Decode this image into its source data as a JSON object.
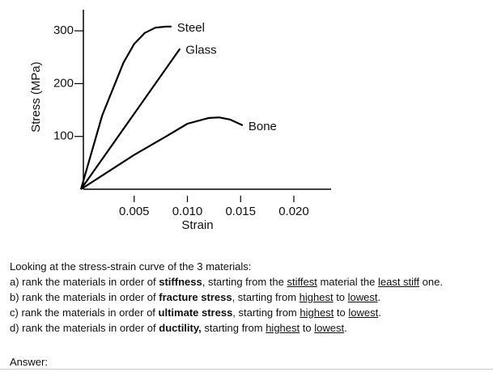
{
  "chart_data": {
    "type": "line",
    "x_label": "Strain",
    "y_label": "Stress (MPa)",
    "xlim": [
      0,
      0.0235
    ],
    "ylim": [
      0,
      340
    ],
    "xticks": [
      0.005,
      {
        "value": 0.01,
        "label": "0.010"
      },
      0.015,
      {
        "value": 0.02,
        "label": "0.020"
      }
    ],
    "yticks": [
      100,
      200,
      300
    ],
    "series": [
      {
        "name": "Steel",
        "color": "#000000",
        "x": [
          0,
          0.002,
          0.004,
          0.005,
          0.006,
          0.007,
          0.008,
          0.0085
        ],
        "values": [
          0,
          140,
          240,
          275,
          296,
          306,
          308,
          308
        ]
      },
      {
        "name": "Glass",
        "color": "#000000",
        "x": [
          0,
          0.0093
        ],
        "values": [
          0,
          266
        ]
      },
      {
        "name": "Bone",
        "color": "#000000",
        "x": [
          0,
          0.005,
          0.008,
          0.01,
          0.012,
          0.013,
          0.014,
          0.0152
        ],
        "values": [
          0,
          65,
          100,
          124,
          135,
          136,
          132,
          121
        ]
      }
    ]
  },
  "question": {
    "intro": "Looking at the stress-strain curve of the 3 materials:",
    "items": [
      [
        "a) rank the materials in order of ",
        "stiffness",
        ", starting from the ",
        "stiffest",
        " material the ",
        "least stiff",
        " one."
      ],
      [
        "b) rank the materials in order of ",
        "fracture stress",
        ", starting from ",
        "highest",
        " to ",
        "lowest",
        "."
      ],
      [
        "c) rank the materials in order of ",
        "ultimate stress",
        ", starting from ",
        "highest",
        " to ",
        "lowest",
        "."
      ],
      [
        "d) rank the materials in order of ",
        "ductility,",
        " starting from ",
        "highest",
        " to ",
        "lowest",
        "."
      ]
    ],
    "answer_label": "Answer:"
  }
}
